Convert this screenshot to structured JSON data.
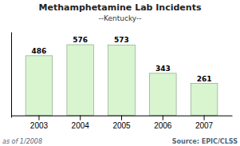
{
  "chart_data": {
    "type": "bar",
    "title": "Methamphetamine Lab Incidents",
    "subtitle": "--Kentucky--",
    "categories": [
      "2003",
      "2004",
      "2005",
      "2006",
      "2007"
    ],
    "values": [
      486,
      576,
      573,
      343,
      261
    ],
    "color": "#d8f5d0",
    "ylim": [
      -15,
      680
    ],
    "data_labels": true,
    "tick_labels": "x",
    "annotations": [
      "as of 1/2008",
      "Source: EPIC/CLSS"
    ]
  }
}
